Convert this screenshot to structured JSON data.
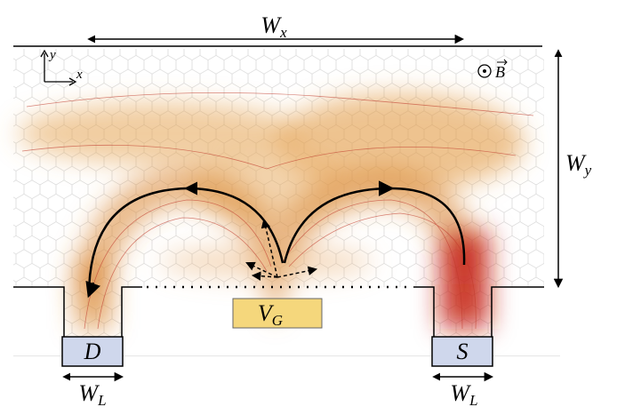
{
  "dimensions": {
    "width_x": {
      "symbol": "W",
      "subscript": "x"
    },
    "width_y": {
      "symbol": "W",
      "subscript": "y"
    },
    "lead_drain": {
      "symbol": "W",
      "subscript": "L"
    },
    "lead_source": {
      "symbol": "W",
      "subscript": "L"
    }
  },
  "contacts": {
    "drain": "D",
    "source": "S",
    "gate": {
      "symbol": "V",
      "subscript": "G"
    }
  },
  "axes": {
    "y": "y",
    "x": "x"
  },
  "field": "B"
}
